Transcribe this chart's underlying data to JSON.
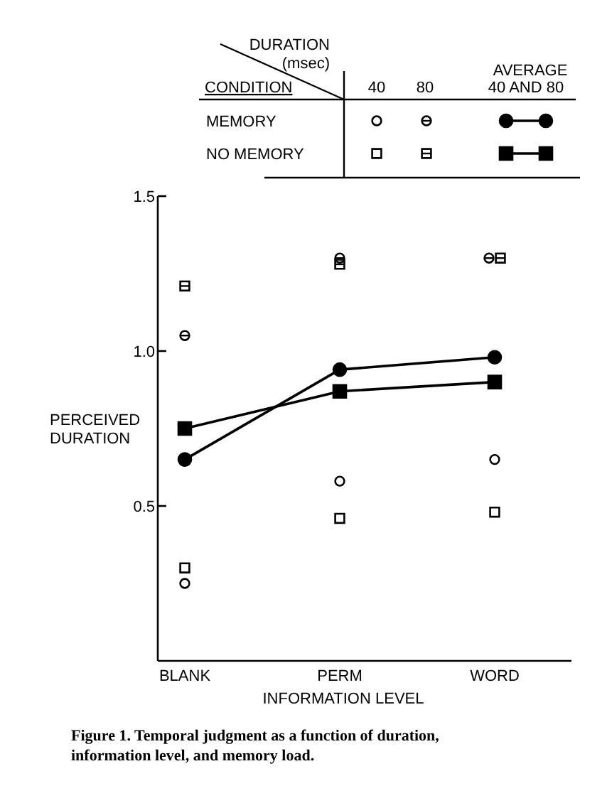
{
  "chart_data": {
    "type": "scatter",
    "xlabel": "INFORMATION LEVEL",
    "ylabel": "PERCEIVED DURATION",
    "categories": [
      "BLANK",
      "PERM",
      "WORD"
    ],
    "ylim": [
      0,
      1.5
    ],
    "yticks": [
      0.5,
      {
        "value": 1,
        "label": "1.0"
      },
      1.5
    ],
    "series": [
      {
        "marker": "circle",
        "color": "#000000",
        "values": [
          0.25,
          0.58,
          0.65
        ]
      },
      {
        "marker": "circle",
        "color": "#000000",
        "values": [
          1.05,
          1.3,
          1.3
        ]
      },
      {
        "marker": "square",
        "color": "#000000",
        "values": [
          0.3,
          0.46,
          0.48
        ]
      },
      {
        "marker": "square",
        "color": "#000000",
        "values": [
          1.21,
          1.28,
          1.3
        ]
      },
      {
        "type": "line",
        "marker": "circle",
        "color": "#000000",
        "values": [
          0.65,
          0.94,
          0.98
        ]
      },
      {
        "type": "line",
        "marker": "square",
        "color": "#000000",
        "values": [
          0.75,
          0.87,
          0.9
        ]
      }
    ],
    "annotations": [
      "DURATION (msec)",
      "CONDITION",
      "40",
      "80",
      "AVERAGE 40 AND 80",
      "MEMORY",
      "NO MEMORY",
      "Figure 1. Temporal judgment as a function of duration, information level, and memory load."
    ]
  }
}
